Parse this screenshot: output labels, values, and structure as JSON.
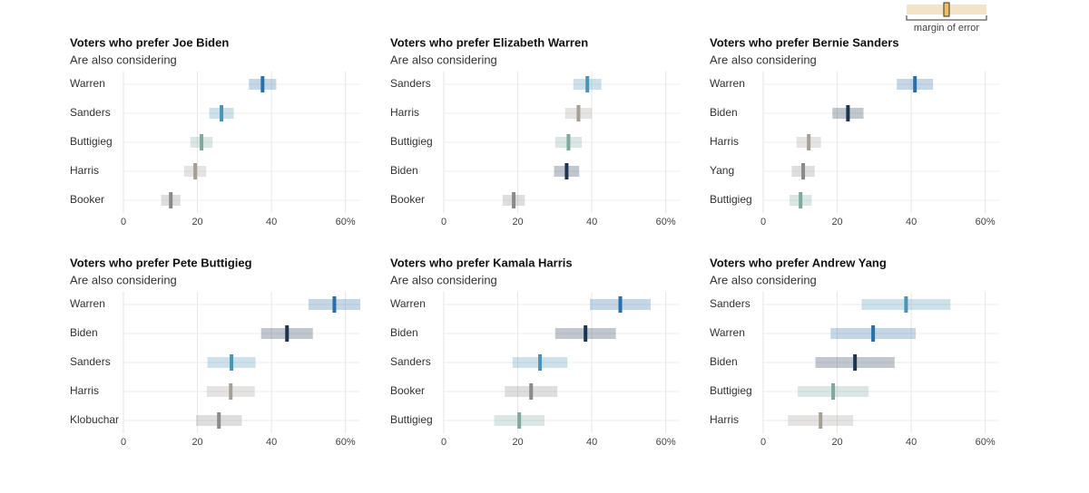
{
  "legend": {
    "label": "margin of error"
  },
  "chart_data": [
    {
      "type": "range",
      "title": "Voters who prefer Joe Biden",
      "subtitle": "Are also considering",
      "categories": [
        "Warren",
        "Sanders",
        "Buttigieg",
        "Harris",
        "Booker"
      ],
      "values": [
        37.6,
        26.5,
        21.1,
        19.4,
        12.8
      ],
      "margins": [
        3.7,
        3.3,
        3,
        3,
        2.6
      ],
      "colors": [
        "#2a6fa8",
        "#4a95b5",
        "#7fa89e",
        "#a59f96",
        "#8a8a8a"
      ],
      "xlim": [
        0,
        64
      ],
      "xticks": [
        0,
        20,
        40,
        {
          "value": 60,
          "label": "60%"
        }
      ],
      "grid": true
    },
    {
      "type": "range",
      "title": "Voters who prefer Elizabeth Warren",
      "subtitle": "Are also considering",
      "categories": [
        "Sanders",
        "Harris",
        "Buttigieg",
        "Biden",
        "Booker"
      ],
      "values": [
        38.8,
        36.4,
        33.7,
        33.2,
        18.9
      ],
      "margins": [
        3.8,
        3.6,
        3.6,
        3.4,
        3
      ],
      "colors": [
        "#4a95b5",
        "#a59f96",
        "#7fa89e",
        "#1c3550",
        "#8a8a8a"
      ],
      "xlim": [
        0,
        64
      ],
      "xticks": [
        0,
        20,
        40,
        {
          "value": 60,
          "label": "60%"
        }
      ],
      "grid": true
    },
    {
      "type": "range",
      "title": "Voters who prefer Bernie Sanders",
      "subtitle": "Are also considering",
      "categories": [
        "Warren",
        "Biden",
        "Harris",
        "Yang",
        "Buttigieg"
      ],
      "values": [
        41,
        22.9,
        12.3,
        10.8,
        10.1
      ],
      "margins": [
        4.9,
        4.2,
        3.3,
        3.1,
        3
      ],
      "colors": [
        "#2a6fa8",
        "#1c3550",
        "#a59f96",
        "#8a8a8a",
        "#7fa89e"
      ],
      "xlim": [
        0,
        64
      ],
      "xticks": [
        0,
        20,
        40,
        {
          "value": 60,
          "label": "60%"
        }
      ],
      "grid": true
    },
    {
      "type": "range",
      "title": "Voters who prefer Pete Buttigieg",
      "subtitle": "Are also considering",
      "categories": [
        "Warren",
        "Biden",
        "Sanders",
        "Harris",
        "Klobuchar"
      ],
      "values": [
        57,
        44.2,
        29.2,
        29,
        25.8
      ],
      "margins": [
        7,
        7,
        6.5,
        6.5,
        6.2
      ],
      "colors": [
        "#2a6fa8",
        "#1c3550",
        "#4a95b5",
        "#a59f96",
        "#8a8a8a"
      ],
      "xlim": [
        0,
        64
      ],
      "xticks": [
        0,
        20,
        40,
        {
          "value": 60,
          "label": "60%"
        }
      ],
      "grid": true
    },
    {
      "type": "range",
      "title": "Voters who prefer Kamala Harris",
      "subtitle": "Are also considering",
      "categories": [
        "Warren",
        "Biden",
        "Sanders",
        "Booker",
        "Buttigieg"
      ],
      "values": [
        47.7,
        38.3,
        26,
        23.6,
        20.4
      ],
      "margins": [
        8.2,
        8.2,
        7.4,
        7.1,
        6.8
      ],
      "colors": [
        "#2a6fa8",
        "#1c3550",
        "#4a95b5",
        "#8a8a8a",
        "#7fa89e"
      ],
      "xlim": [
        0,
        64
      ],
      "xticks": [
        0,
        20,
        40,
        {
          "value": 60,
          "label": "60%"
        }
      ],
      "grid": true
    },
    {
      "type": "range",
      "title": "Voters who prefer Andrew Yang",
      "subtitle": "Are also considering",
      "categories": [
        "Sanders",
        "Warren",
        "Biden",
        "Buttigieg",
        "Harris"
      ],
      "values": [
        38.6,
        29.7,
        24.8,
        18.9,
        15.5
      ],
      "margins": [
        12,
        11.5,
        10.7,
        9.6,
        8.8
      ],
      "colors": [
        "#4a95b5",
        "#2a6fa8",
        "#1c3550",
        "#7fa89e",
        "#a59f96"
      ],
      "xlim": [
        0,
        64
      ],
      "xticks": [
        0,
        20,
        40,
        {
          "value": 60,
          "label": "60%"
        }
      ],
      "grid": true
    }
  ]
}
